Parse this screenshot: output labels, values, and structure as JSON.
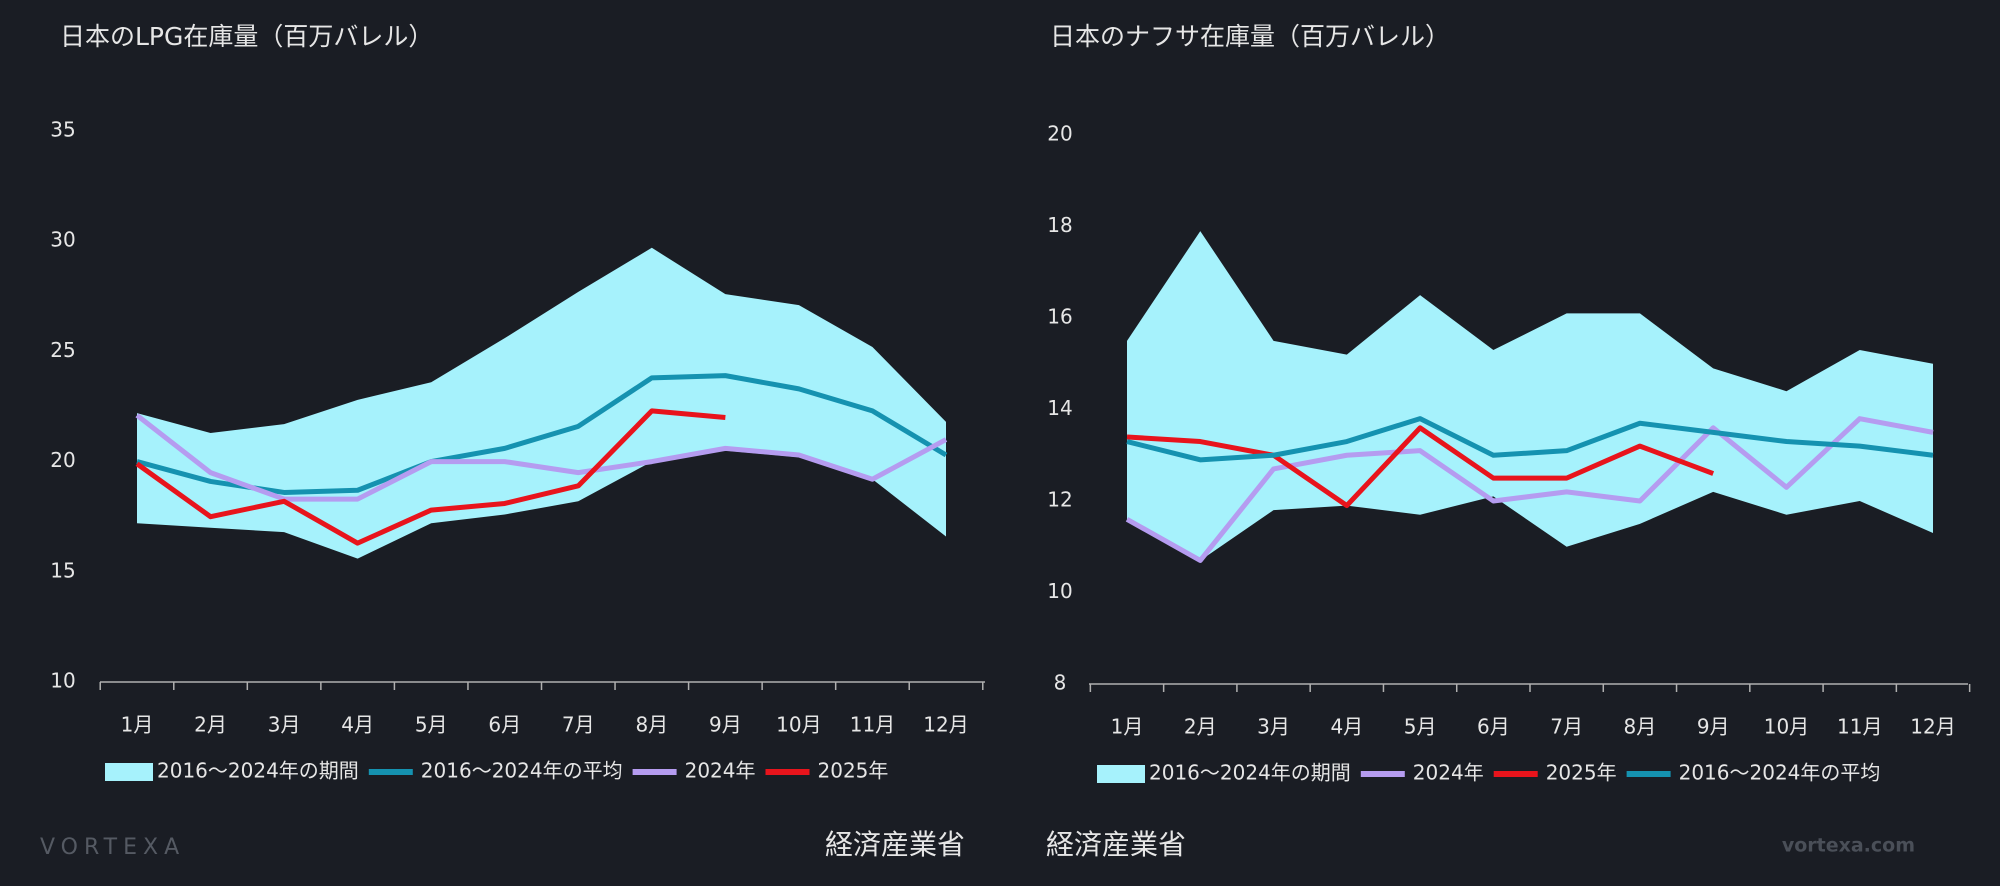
{
  "chart_data": [
    {
      "type": "line",
      "title": "日本のLPG在庫量（百万バレル）",
      "categories": [
        "1月",
        "2月",
        "3月",
        "4月",
        "5月",
        "6月",
        "7月",
        "8月",
        "9月",
        "10月",
        "11月",
        "12月"
      ],
      "ylim": [
        10,
        35
      ],
      "yticks": [
        10,
        15,
        20,
        25,
        30,
        35
      ],
      "series": [
        {
          "name": "2016～2024年の期間",
          "color": "#a6f2fc",
          "low": [
            17.2,
            17.0,
            16.8,
            15.6,
            17.2,
            17.6,
            18.2,
            20.0,
            20.5,
            20.2,
            19.2,
            16.6
          ],
          "high": [
            22.2,
            21.3,
            21.7,
            22.8,
            23.6,
            25.6,
            27.7,
            29.7,
            27.6,
            27.1,
            25.2,
            21.8
          ]
        },
        {
          "name": "2016～2024年の平均",
          "color": "#1592b0",
          "values": [
            20.0,
            19.1,
            18.6,
            18.7,
            20.0,
            20.6,
            21.6,
            23.8,
            23.9,
            23.3,
            22.3,
            20.3
          ]
        },
        {
          "name": "2024年",
          "color": "#b59cf0",
          "values": [
            22.1,
            19.5,
            18.3,
            18.3,
            20.0,
            20.0,
            19.5,
            20.0,
            20.6,
            20.3,
            19.2,
            21.0
          ]
        },
        {
          "name": "2025年",
          "color": "#e8141c",
          "values": [
            19.9,
            17.5,
            18.2,
            16.3,
            17.8,
            18.1,
            18.9,
            22.3,
            22.0,
            null,
            null,
            null
          ]
        }
      ]
    },
    {
      "type": "line",
      "title": "日本のナフサ在庫量（百万バレル）",
      "categories": [
        "1月",
        "2月",
        "3月",
        "4月",
        "5月",
        "6月",
        "7月",
        "8月",
        "9月",
        "10月",
        "11月",
        "12月"
      ],
      "ylim": [
        8,
        20
      ],
      "yticks": [
        8,
        10,
        12,
        14,
        16,
        18,
        20
      ],
      "series": [
        {
          "name": "2016～2024年の期間",
          "color": "#a6f2fc",
          "low": [
            11.6,
            10.7,
            11.8,
            11.9,
            11.7,
            12.1,
            11.0,
            11.5,
            12.2,
            11.7,
            12.0,
            11.3
          ],
          "high": [
            15.5,
            17.9,
            15.5,
            15.2,
            16.5,
            15.3,
            16.1,
            16.1,
            14.9,
            14.4,
            15.3,
            15.0
          ]
        },
        {
          "name": "2024年",
          "color": "#b59cf0",
          "values": [
            11.6,
            10.7,
            12.7,
            13.0,
            13.1,
            12.0,
            12.2,
            12.0,
            13.6,
            12.3,
            13.8,
            13.5
          ]
        },
        {
          "name": "2025年",
          "color": "#e8141c",
          "values": [
            13.4,
            13.3,
            13.0,
            11.9,
            13.6,
            12.5,
            12.5,
            13.2,
            12.6,
            null,
            null,
            null
          ]
        },
        {
          "name": "2016～2024年の平均",
          "color": "#1592b0",
          "values": [
            13.3,
            12.9,
            13.0,
            13.3,
            13.8,
            13.0,
            13.1,
            13.7,
            13.5,
            13.3,
            13.2,
            13.0
          ]
        }
      ]
    }
  ],
  "footer": {
    "logo": "VORTEXA",
    "source_left": "経済産業省",
    "source_right": "経済産業省",
    "url": "vortexa.com"
  }
}
